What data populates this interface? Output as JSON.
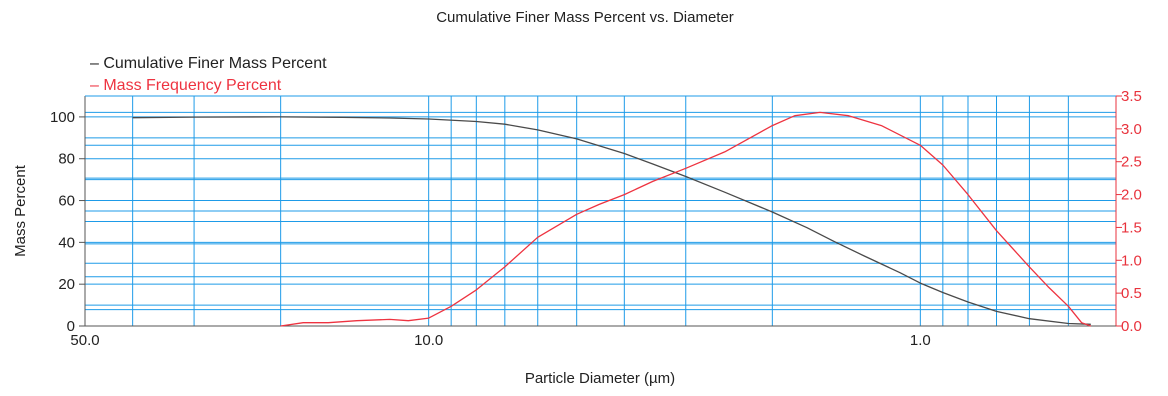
{
  "chart_data": {
    "type": "line",
    "title": "Cumulative Finer Mass Percent vs. Diameter",
    "xlabel": "Particle Diameter (µm)",
    "ylabel": "Mass Percent",
    "x_scale": "log",
    "x_reversed": true,
    "xlim": [
      50.0,
      0.4
    ],
    "ylim_left": [
      0,
      110
    ],
    "ylim_right": [
      0,
      3.5
    ],
    "x_tick_labels": [
      {
        "value": 50.0,
        "label": "50.0"
      },
      {
        "value": 10.0,
        "label": "10.0"
      },
      {
        "value": 1.0,
        "label": "1.0"
      }
    ],
    "left_ticks": [
      {
        "value": 0,
        "label": "0"
      },
      {
        "value": 20,
        "label": "20"
      },
      {
        "value": 40,
        "label": "40"
      },
      {
        "value": 60,
        "label": "60"
      },
      {
        "value": 80,
        "label": "80"
      },
      {
        "value": 100,
        "label": "100"
      }
    ],
    "right_ticks": [
      {
        "value": 0.0,
        "label": "0.0"
      },
      {
        "value": 0.5,
        "label": "0.5"
      },
      {
        "value": 1.0,
        "label": "1.0"
      },
      {
        "value": 1.5,
        "label": "1.5"
      },
      {
        "value": 2.0,
        "label": "2.0"
      },
      {
        "value": 2.5,
        "label": "2.5"
      },
      {
        "value": 3.0,
        "label": "3.0"
      },
      {
        "value": 3.5,
        "label": "3.5"
      }
    ],
    "grid": true,
    "legend_position": "top-left",
    "colors": {
      "grid": "#1e9be8",
      "series_1": "#4a4a4a",
      "series_2": "#ee3340",
      "right_axis": "#e8323c"
    },
    "series": [
      {
        "name": "Cumulative Finer Mass Percent",
        "axis": "left",
        "points": [
          [
            40.0,
            99.6
          ],
          [
            30.0,
            99.9
          ],
          [
            20.0,
            100.0
          ],
          [
            15.0,
            99.8
          ],
          [
            12.0,
            99.5
          ],
          [
            10.0,
            99.0
          ],
          [
            8.0,
            97.8
          ],
          [
            7.0,
            96.5
          ],
          [
            6.0,
            93.8
          ],
          [
            5.0,
            89.5
          ],
          [
            4.0,
            82.5
          ],
          [
            3.5,
            77.5
          ],
          [
            3.0,
            71.5
          ],
          [
            2.5,
            64.0
          ],
          [
            2.0,
            54.5
          ],
          [
            1.7,
            47.0
          ],
          [
            1.5,
            40.5
          ],
          [
            1.3,
            33.5
          ],
          [
            1.1,
            25.5
          ],
          [
            1.0,
            20.5
          ],
          [
            0.9,
            16.0
          ],
          [
            0.8,
            11.5
          ],
          [
            0.7,
            7.0
          ],
          [
            0.6,
            3.5
          ],
          [
            0.5,
            1.2
          ],
          [
            0.45,
            0.8
          ]
        ]
      },
      {
        "name": "Mass Frequency Percent",
        "axis": "right",
        "points": [
          [
            20.0,
            0.0
          ],
          [
            18.0,
            0.05
          ],
          [
            16.0,
            0.05
          ],
          [
            14.0,
            0.08
          ],
          [
            12.0,
            0.1
          ],
          [
            11.0,
            0.08
          ],
          [
            10.0,
            0.12
          ],
          [
            9.0,
            0.3
          ],
          [
            8.0,
            0.55
          ],
          [
            7.0,
            0.9
          ],
          [
            6.0,
            1.35
          ],
          [
            5.0,
            1.7
          ],
          [
            4.5,
            1.85
          ],
          [
            4.0,
            2.0
          ],
          [
            3.5,
            2.2
          ],
          [
            3.0,
            2.4
          ],
          [
            2.5,
            2.65
          ],
          [
            2.0,
            3.05
          ],
          [
            1.8,
            3.2
          ],
          [
            1.6,
            3.25
          ],
          [
            1.4,
            3.2
          ],
          [
            1.2,
            3.05
          ],
          [
            1.0,
            2.75
          ],
          [
            0.9,
            2.45
          ],
          [
            0.8,
            2.0
          ],
          [
            0.7,
            1.45
          ],
          [
            0.6,
            0.9
          ],
          [
            0.55,
            0.6
          ],
          [
            0.5,
            0.3
          ],
          [
            0.47,
            0.05
          ],
          [
            0.45,
            0.0
          ]
        ]
      }
    ]
  }
}
